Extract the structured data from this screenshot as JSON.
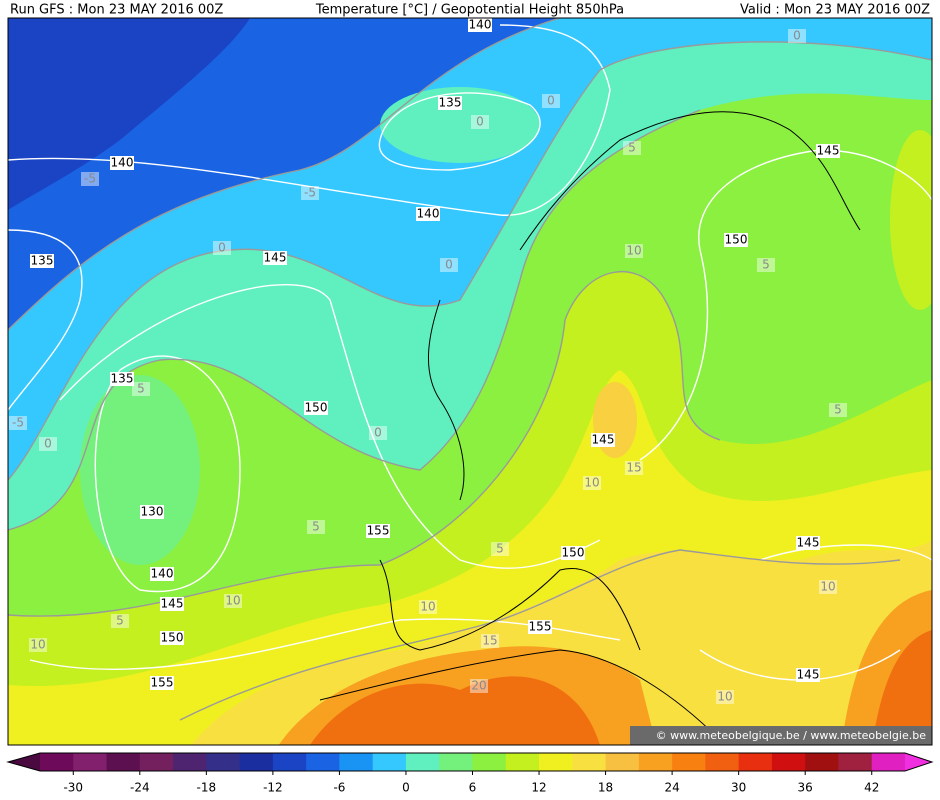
{
  "header": {
    "run": "Run GFS : Mon 23 MAY 2016 00Z",
    "title": "Temperature [°C] / Geopotential Height 850hPa",
    "valid": "Valid : Mon 23 MAY 2016 00Z"
  },
  "height_labels": [
    "140",
    "135",
    "140",
    "135",
    "145",
    "140",
    "145",
    "150",
    "135",
    "150",
    "130",
    "140",
    "145",
    "150",
    "155",
    "155",
    "150",
    "145",
    "155",
    "145",
    "145"
  ],
  "temperature_labels": [
    "0",
    "0",
    "0",
    "-5",
    "-5",
    "0",
    "0",
    "5",
    "10",
    "5",
    "5",
    "-5",
    "0",
    "0",
    "5",
    "15",
    "10",
    "5",
    "5",
    "10",
    "10",
    "5",
    "10",
    "15",
    "20",
    "10",
    "10"
  ],
  "colorbar": {
    "lim": [
      -33,
      45
    ],
    "ticks": [
      -30,
      -24,
      -18,
      -12,
      -6,
      0,
      6,
      12,
      18,
      24,
      30,
      36,
      42
    ],
    "colors": [
      "#6e0a5a",
      "#82206e",
      "#5c1050",
      "#74205e",
      "#4e2470",
      "#34308a",
      "#1a2ea0",
      "#1a44c4",
      "#1a64e4",
      "#1a94f4",
      "#34c8ff",
      "#60f0c0",
      "#74f07c",
      "#8cf040",
      "#c4f020",
      "#f0f020",
      "#f8e040",
      "#f8c040",
      "#f8a020",
      "#f88010",
      "#f06010",
      "#e83010",
      "#d01010",
      "#a01010",
      "#a02040",
      "#e020c0"
    ],
    "below_color": "#4a0a40",
    "above_color": "#f030e0"
  },
  "credit": "© www.meteobelgique.be / www.meteobelgie.be"
}
